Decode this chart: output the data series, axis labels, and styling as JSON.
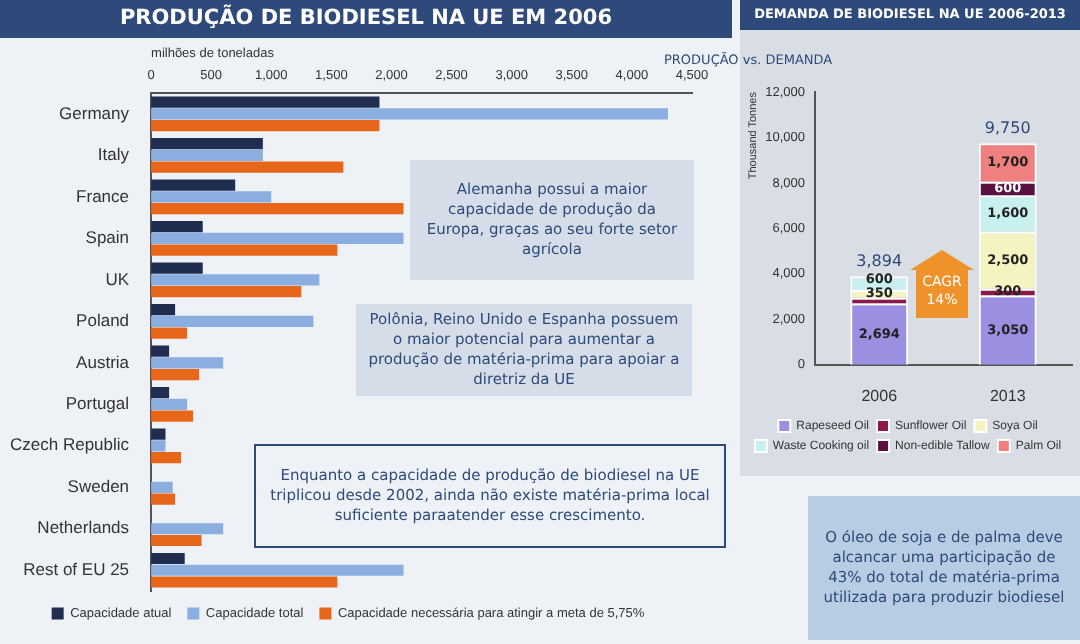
{
  "chart_data": [
    {
      "type": "bar",
      "orientation": "horizontal",
      "title": "PRODUÇÃO DE BIODIESEL NA UE EM 2006",
      "xlabel": "milhões de toneladas",
      "categories": [
        "Germany",
        "Italy",
        "France",
        "Spain",
        "UK",
        "Poland",
        "Austria",
        "Portugal",
        "Czech Republic",
        "Sweden",
        "Netherlands",
        "Rest of EU 25"
      ],
      "series": [
        {
          "name": "Capacidade atual",
          "color": "#1f2d50",
          "values": [
            1900,
            930,
            700,
            430,
            430,
            200,
            150,
            150,
            120,
            null,
            null,
            280
          ]
        },
        {
          "name": "Capacidade total",
          "color": "#8aaee0",
          "values": [
            4300,
            930,
            1000,
            2100,
            1400,
            1350,
            600,
            300,
            120,
            180,
            600,
            2100
          ]
        },
        {
          "name": "Capacidade necessária para atingir a meta de 5,75%",
          "color": "#e8661a",
          "values": [
            1900,
            1600,
            2100,
            1550,
            1250,
            300,
            400,
            350,
            250,
            200,
            420,
            1550
          ]
        }
      ],
      "xlim": [
        0,
        4500
      ],
      "xticks": [
        0,
        500,
        {
          "value": 1000,
          "label": "1,000"
        },
        {
          "value": 1500,
          "label": "1,500"
        },
        {
          "value": 2000,
          "label": "2,000"
        },
        {
          "value": 2500,
          "label": "2,500"
        },
        {
          "value": 3000,
          "label": "3,000"
        },
        {
          "value": 3500,
          "label": "3,500"
        },
        {
          "value": 4000,
          "label": "4,000"
        },
        {
          "value": 4500,
          "label": "4,500"
        }
      ],
      "legend": "bottom",
      "annotations": [
        "Alemanha possui a maior capacidade de produção da Europa, graças ao seu forte setor agrícola",
        "Polônia, Reino Unido e Espanha possuem o maior potencial para aumentar a produção de matéria-prima para apoiar a diretriz da UE",
        "Enquanto a capacidade de produção de biodiesel na UE triplicou desde 2002, ainda não existe matéria-prima local suficiente paraatender esse crescimento."
      ]
    },
    {
      "type": "bar",
      "stacked": true,
      "title": "DEMANDA DE BIODIESEL NA UE 2006-2013",
      "subtitle": "PRODUÇÃO vs. DEMANDA",
      "ylabel": "Thousand Tonnes",
      "categories": [
        "2006",
        "2013"
      ],
      "series": [
        {
          "name": "Rapeseed Oil",
          "color": "#9a8fe0",
          "values": [
            2694,
            3050
          ],
          "value_labels": [
            "2,694",
            "3,050"
          ]
        },
        {
          "name": "Sunflower Oil",
          "color": "#8b1a4a",
          "values": [
            250,
            300
          ],
          "value_labels": [
            null,
            "300"
          ]
        },
        {
          "name": "Soya Oil",
          "color": "#f5f3c0",
          "values": [
            350,
            2500
          ],
          "value_labels": [
            "350",
            "2,500"
          ]
        },
        {
          "name": "Waste Cooking oil",
          "color": "#c8f0f0",
          "values": [
            600,
            1600
          ],
          "value_labels": [
            "600",
            "1,600"
          ]
        },
        {
          "name": "Non-edible Tallow",
          "color": "#5a1040",
          "values": [
            null,
            600
          ],
          "value_labels": [
            null,
            "600"
          ]
        },
        {
          "name": "Palm Oil",
          "color": "#f08080",
          "values": [
            null,
            1700
          ],
          "value_labels": [
            null,
            "1,700"
          ]
        }
      ],
      "totals": [
        "3,894",
        "9,750"
      ],
      "ylim": [
        0,
        12000
      ],
      "yticks": [
        0,
        {
          "value": 2000,
          "label": "2,000"
        },
        {
          "value": 4000,
          "label": "4,000"
        },
        {
          "value": 6000,
          "label": "6,000"
        },
        {
          "value": 8000,
          "label": "8,000"
        },
        {
          "value": 10000,
          "label": "10,000"
        },
        {
          "value": 12000,
          "label": "12,000"
        }
      ],
      "legend": "bottom",
      "annotations": [
        "CAGR 14%",
        "O óleo de soja e de palma deve alcancar uma participação de 43% do total de matéria-prima utilizada para produzir biodiesel"
      ]
    }
  ]
}
